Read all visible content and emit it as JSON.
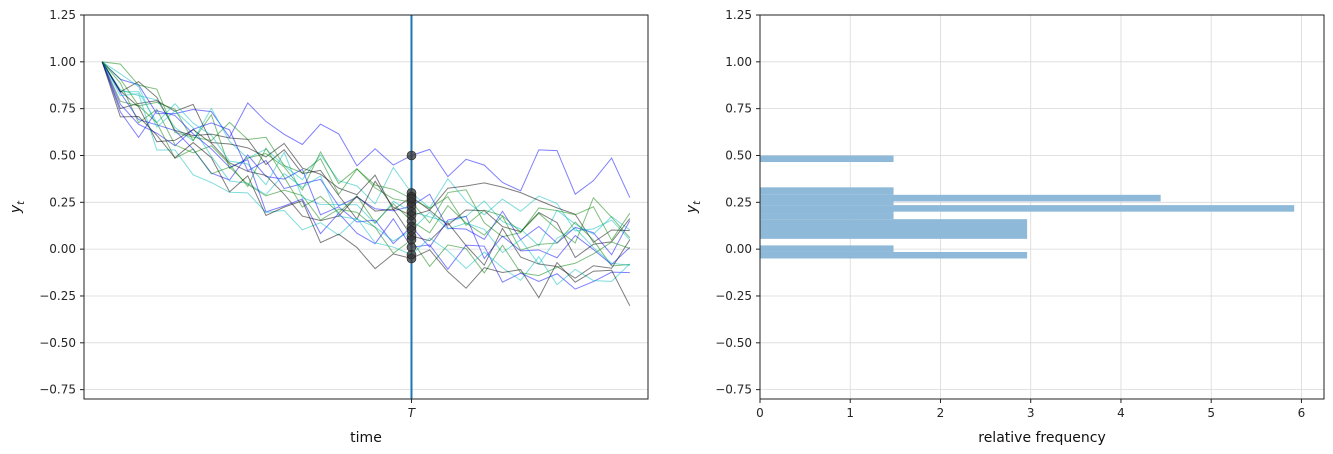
{
  "chart_data": [
    {
      "type": "line",
      "xlabel": "time",
      "ylabel": "y_t",
      "ylim": [
        -0.8,
        1.25
      ],
      "yticks": [
        "−0.75",
        "−0.50",
        "−0.25",
        "0.00",
        "0.25",
        "0.50",
        "0.75",
        "1.00",
        "1.25"
      ],
      "ytick_values": [
        -0.75,
        -0.5,
        -0.25,
        0.0,
        0.25,
        0.5,
        0.75,
        1.0,
        1.25
      ],
      "xlim": [
        -1,
        30
      ],
      "marker_time": 17,
      "xtick_label": "T",
      "marker_color": "#1f77b4",
      "grid": true,
      "start_value": 1.0,
      "series_colors": [
        "#0000ff",
        "#00bbbb",
        "#000000",
        "#008000"
      ],
      "series_count": 16,
      "points_at_T": [
        0.5,
        0.3,
        0.28,
        0.25,
        0.23,
        0.2,
        0.18,
        0.15,
        0.12,
        0.1,
        0.07,
        0.05,
        0.01,
        -0.03,
        -0.05,
        0.27
      ],
      "dot_color": "#333333"
    },
    {
      "type": "bar",
      "orientation": "horizontal",
      "xlabel": "relative frequency",
      "ylabel": "y_t",
      "ylim": [
        -0.8,
        1.25
      ],
      "xlim": [
        0,
        6.25
      ],
      "xticks": [
        0,
        1,
        2,
        3,
        4,
        5,
        6
      ],
      "yticks": [
        "−0.75",
        "−0.50",
        "−0.25",
        "0.00",
        "0.25",
        "0.50",
        "0.75",
        "1.00",
        "1.25"
      ],
      "ytick_values": [
        -0.75,
        -0.5,
        -0.25,
        0.0,
        0.25,
        0.5,
        0.75,
        1.0,
        1.25
      ],
      "bar_color": "#8fb9d8",
      "grid": true,
      "bins": [
        {
          "y0": -0.05,
          "y1": -0.015,
          "value": 2.96
        },
        {
          "y0": -0.015,
          "y1": 0.02,
          "value": 1.48
        },
        {
          "y0": 0.055,
          "y1": 0.16,
          "value": 2.96
        },
        {
          "y0": 0.16,
          "y1": 0.19,
          "value": 1.48
        },
        {
          "y0": 0.19,
          "y1": 0.225,
          "value": 1.48
        },
        {
          "y0": 0.2,
          "y1": 0.235,
          "value": 5.92
        },
        {
          "y0": 0.235,
          "y1": 0.27,
          "value": 1.48
        },
        {
          "y0": 0.255,
          "y1": 0.29,
          "value": 4.44
        },
        {
          "y0": 0.29,
          "y1": 0.33,
          "value": 1.48
        },
        {
          "y0": 0.465,
          "y1": 0.5,
          "value": 1.48
        }
      ]
    }
  ]
}
